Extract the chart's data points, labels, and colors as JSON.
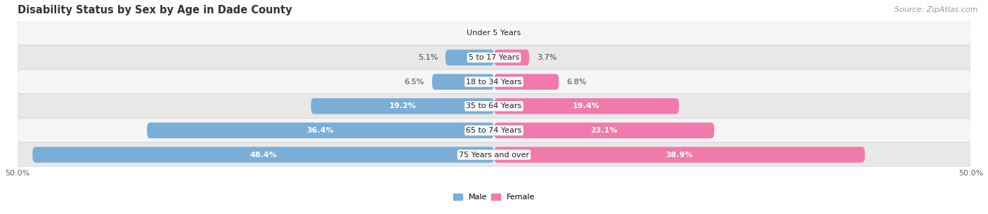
{
  "title": "Disability Status by Sex by Age in Dade County",
  "source": "Source: ZipAtlas.com",
  "categories": [
    "Under 5 Years",
    "5 to 17 Years",
    "18 to 34 Years",
    "35 to 64 Years",
    "65 to 74 Years",
    "75 Years and over"
  ],
  "male_values": [
    0.0,
    5.1,
    6.5,
    19.2,
    36.4,
    48.4
  ],
  "female_values": [
    0.0,
    3.7,
    6.8,
    19.4,
    23.1,
    38.9
  ],
  "male_color": "#7aaed6",
  "female_color": "#f07aab",
  "row_bg_colors": [
    "#f5f5f5",
    "#e8e8e8"
  ],
  "row_border_color": "#cccccc",
  "max_value": 50.0,
  "title_fontsize": 10.5,
  "value_fontsize": 8.0,
  "category_fontsize": 8.0,
  "source_fontsize": 8.0,
  "legend_male": "Male",
  "legend_female": "Female",
  "bar_height": 0.65
}
